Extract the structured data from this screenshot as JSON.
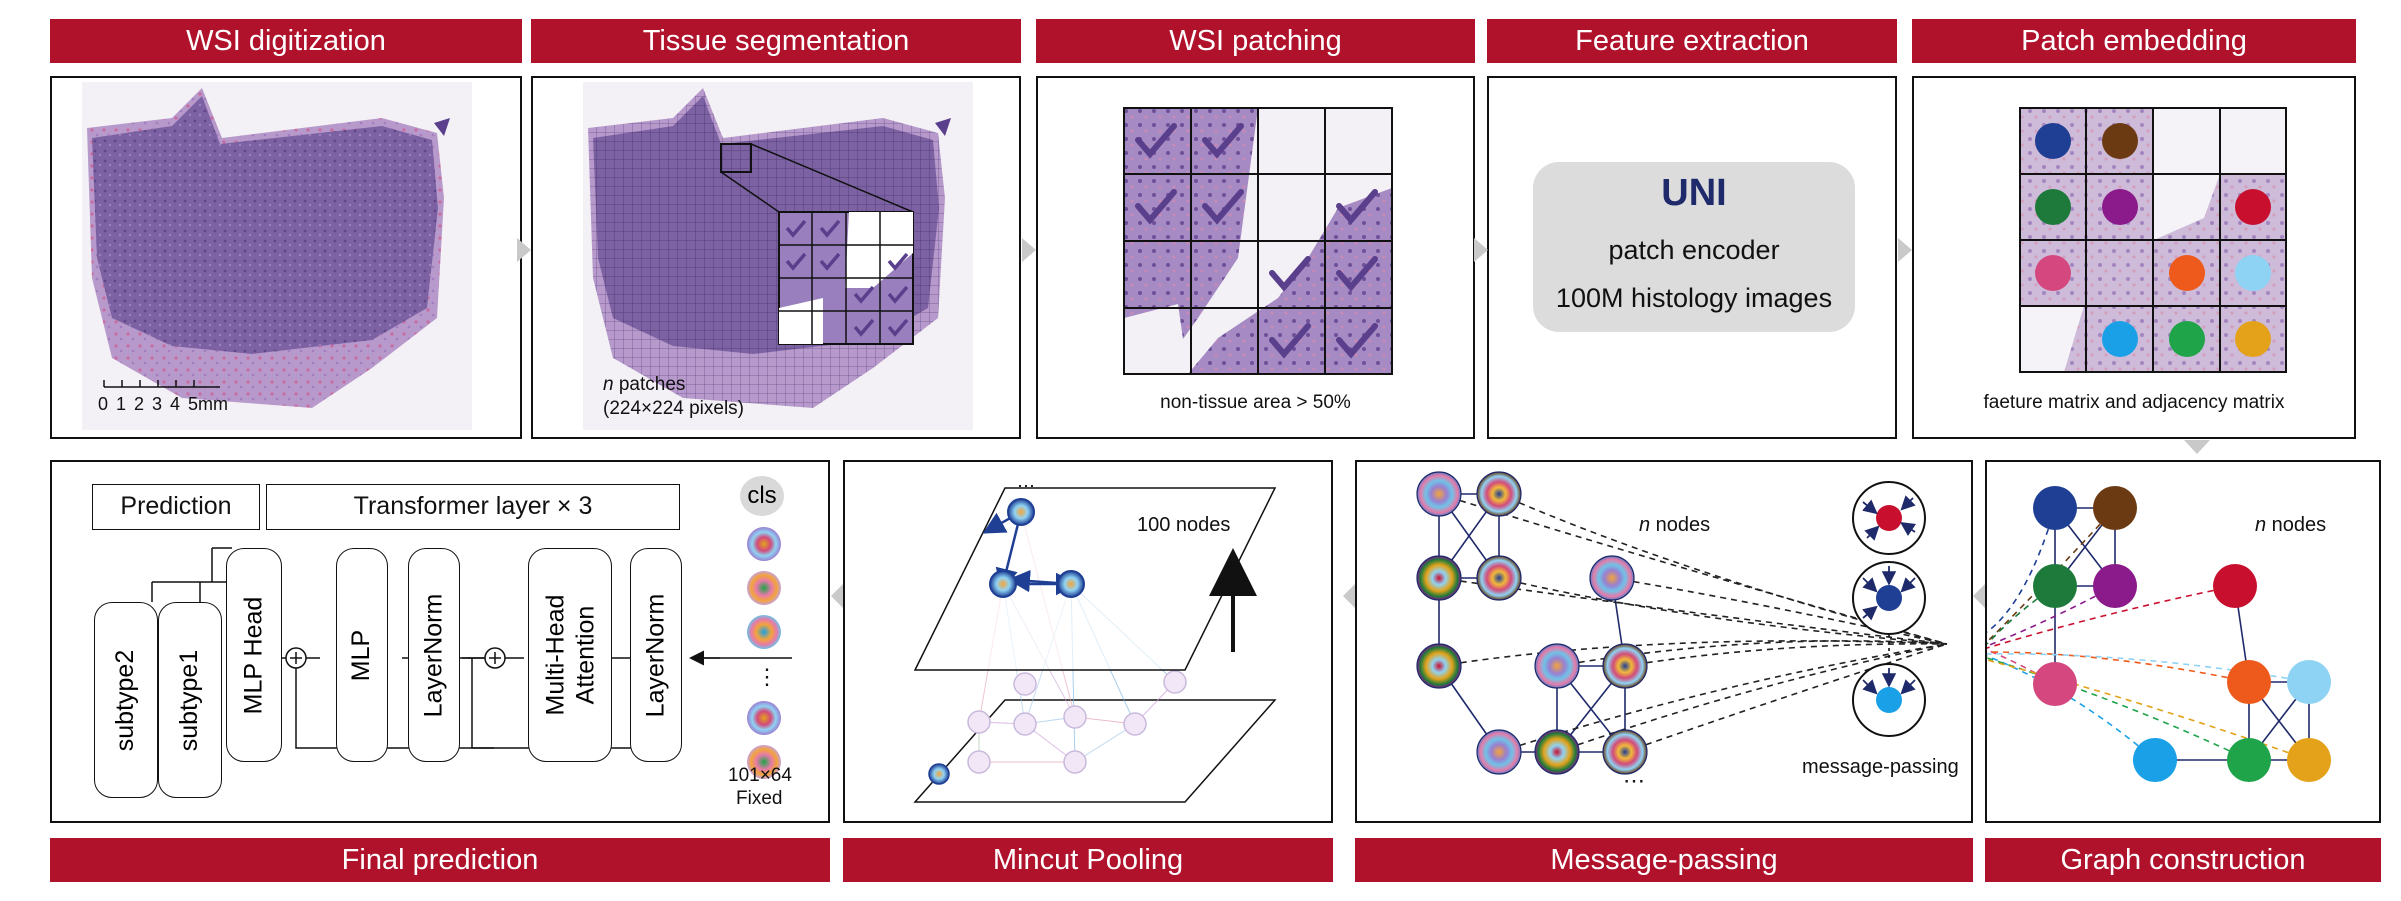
{
  "steps": {
    "s1": "WSI digitization",
    "s2": "Tissue segmentation",
    "s3": "WSI patching",
    "s4": "Feature extraction",
    "s5": "Patch embedding",
    "s6": "Graph construction",
    "s7": "Message-passing",
    "s8": "Mincut Pooling",
    "s9": "Final prediction"
  },
  "wsi": {
    "scale_ticks": [
      "0",
      "1",
      "2",
      "3",
      "4",
      "5mm"
    ]
  },
  "segmentation": {
    "patches_n": "n",
    "patches_text": " patches",
    "patch_size": "(224×224 pixels)"
  },
  "patching": {
    "caption": "non-tissue area > 50%"
  },
  "extraction": {
    "model": "UNI",
    "line1": "patch encoder",
    "line2": "100M histology images"
  },
  "embedding": {
    "caption": "faeture matrix and adjacency matrix"
  },
  "graph": {
    "nodes_n": "n",
    "nodes_text": " nodes"
  },
  "message": {
    "nodes_n": "n",
    "nodes_text": " nodes",
    "caption": "message-passing"
  },
  "mincut": {
    "nodes_label": "100 nodes"
  },
  "prediction": {
    "prediction_label": "Prediction",
    "transformer_label": "Transformer layer × 3",
    "cls": "cls",
    "token_size": "101×64",
    "token_fixed": "Fixed",
    "ellipsis": "⋮",
    "blocks": {
      "subtype2": "subtype2",
      "subtype1": "subtype1",
      "mlp_head": "MLP Head",
      "mlp": "MLP",
      "layernorm1": "LayerNorm",
      "mha1": "Multi-Head",
      "mha2": "Attention",
      "layernorm2": "LayerNorm"
    }
  },
  "colors": {
    "banner": "#b0112b",
    "tissue_purple": "#8a6aa6",
    "check": "#5a3f8c",
    "node_navy": "#1f3f94",
    "node_brown": "#6b3a12",
    "node_green": "#1e7a3a",
    "node_purple": "#8b1a8b",
    "node_red": "#c8102e",
    "node_pink": "#d4477f",
    "node_orange": "#ee5a1c",
    "node_lightblue": "#8fd3f4",
    "node_blue": "#1aa0e6",
    "node_green2": "#1fa44a",
    "node_gold": "#e3a21a"
  }
}
